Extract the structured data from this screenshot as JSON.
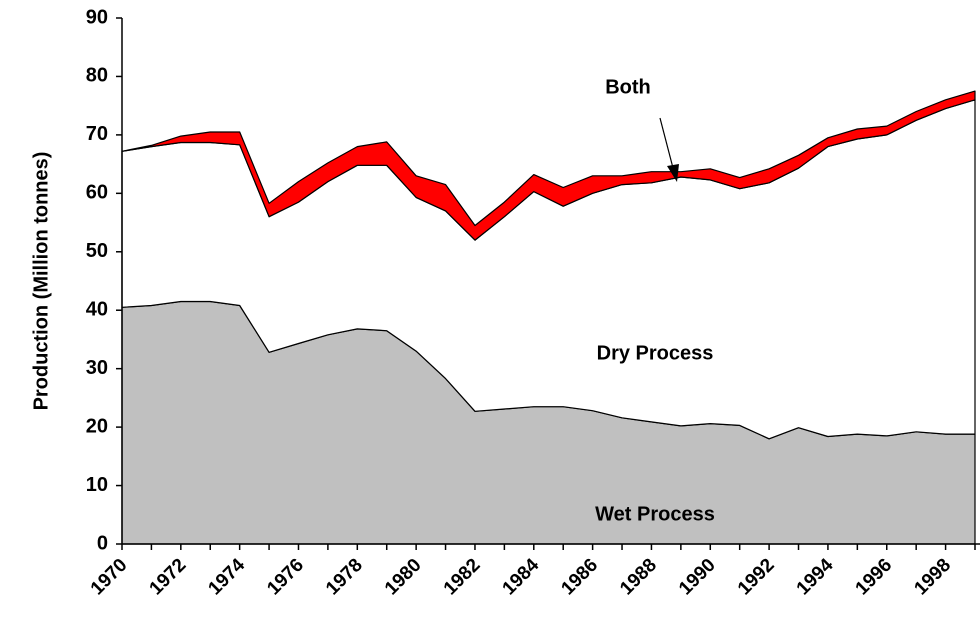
{
  "chart_data": {
    "type": "stacked-area",
    "y_label": "Production (Million tonnes)",
    "x": [
      1970,
      1971,
      1972,
      1973,
      1974,
      1975,
      1976,
      1977,
      1978,
      1979,
      1980,
      1981,
      1982,
      1983,
      1984,
      1985,
      1986,
      1987,
      1988,
      1989,
      1990,
      1991,
      1992,
      1993,
      1994,
      1995,
      1996,
      1997,
      1998,
      1999
    ],
    "xlim": [
      1970,
      1999
    ],
    "xticks": [
      1970,
      1972,
      1974,
      1976,
      1978,
      1980,
      1982,
      1984,
      1986,
      1988,
      1990,
      1992,
      1994,
      1996,
      1998
    ],
    "ylim": [
      0,
      90
    ],
    "yticks": [
      0,
      10,
      20,
      30,
      40,
      50,
      60,
      70,
      80,
      90
    ],
    "series": [
      {
        "name": "Wet Process",
        "color": "#c0c0c0",
        "values": [
          40.5,
          40.8,
          41.5,
          41.5,
          40.8,
          32.8,
          34.3,
          35.8,
          36.8,
          36.5,
          33,
          28.3,
          22.7,
          23.1,
          23.5,
          23.5,
          22.8,
          21.6,
          20.9,
          20.2,
          20.6,
          20.3,
          18,
          19.9,
          18.4,
          18.8,
          18.5,
          19.2,
          18.8,
          18.8
        ]
      },
      {
        "name": "Dry Process",
        "color": "#ffffff",
        "values": [
          26.7,
          27.2,
          27.2,
          27.2,
          27.5,
          23.2,
          24.2,
          26.2,
          28,
          28.3,
          26.3,
          28.7,
          29.3,
          32.9,
          36.8,
          34.3,
          37.2,
          39.9,
          40.9,
          42.6,
          41.7,
          40.5,
          43.8,
          44.4,
          49.6,
          50.5,
          51.5,
          53.3,
          55.7,
          57.2
        ]
      },
      {
        "name": "Both",
        "color": "#ff0000",
        "values": [
          0,
          0.2,
          1.1,
          1.8,
          2.2,
          2.3,
          3.5,
          3.2,
          3.2,
          4,
          3.7,
          4.5,
          2.5,
          2.5,
          2.9,
          3.2,
          3,
          1.5,
          1.9,
          0.9,
          1.9,
          1.9,
          2.4,
          2.2,
          1.5,
          1.7,
          1.5,
          1.5,
          1.5,
          1.5
        ]
      }
    ]
  }
}
